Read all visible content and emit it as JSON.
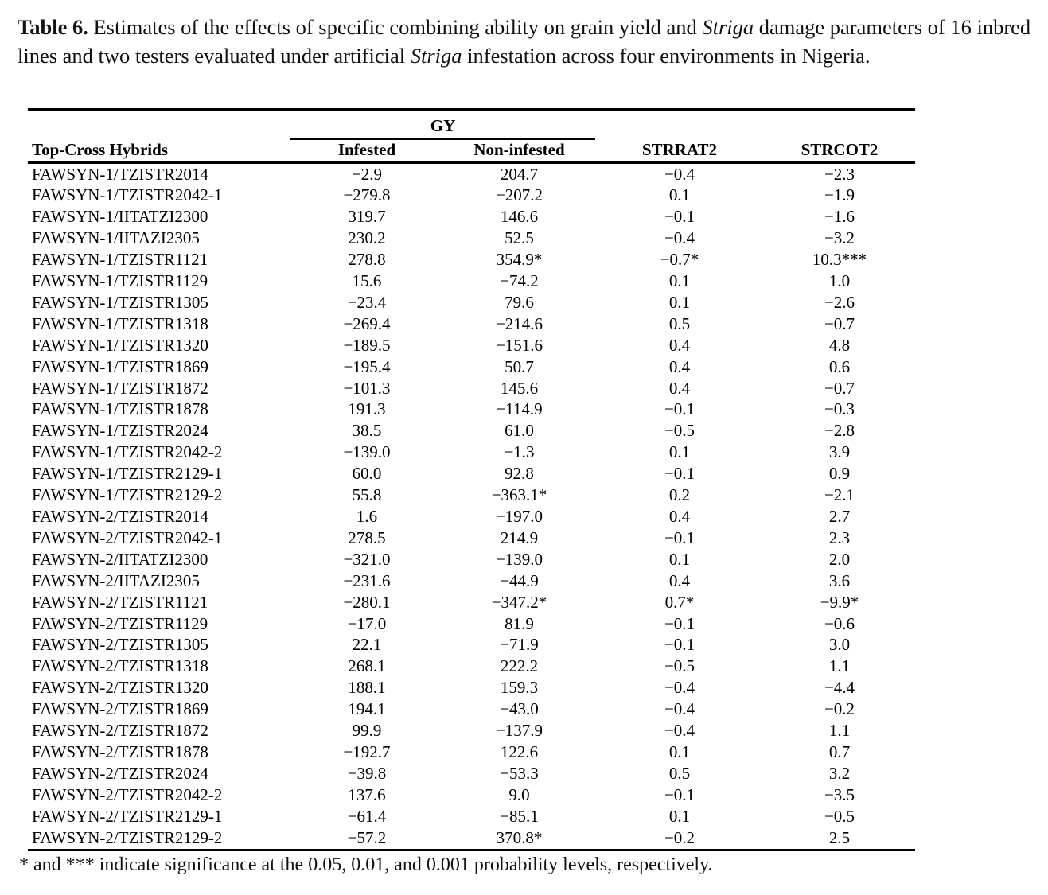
{
  "caption": {
    "label": "Table 6.",
    "part1": " Estimates of the effects of specific combining ability on grain yield and ",
    "striga1": "Striga",
    "part2": " damage parameters of 16 inbred lines and two testers evaluated under artificial ",
    "striga2": "Striga",
    "part3": " infestation across four environments in Nigeria."
  },
  "table": {
    "group_header": "GY",
    "columns": [
      "Top-Cross Hybrids",
      "Infested",
      "Non-infested",
      "STRRAT2",
      "STRCOT2"
    ],
    "rows": [
      [
        "FAWSYN-1/TZISTR2014",
        "−2.9",
        "204.7",
        "−0.4",
        "−2.3"
      ],
      [
        "FAWSYN-1/TZISTR2042-1",
        "−279.8",
        "−207.2",
        "0.1",
        "−1.9"
      ],
      [
        "FAWSYN-1/IITATZI2300",
        "319.7",
        "146.6",
        "−0.1",
        "−1.6"
      ],
      [
        "FAWSYN-1/IITAZI2305",
        "230.2",
        "52.5",
        "−0.4",
        "−3.2"
      ],
      [
        "FAWSYN-1/TZISTR1121",
        "278.8",
        "354.9*",
        "−0.7*",
        "10.3***"
      ],
      [
        "FAWSYN-1/TZISTR1129",
        "15.6",
        "−74.2",
        "0.1",
        "1.0"
      ],
      [
        "FAWSYN-1/TZISTR1305",
        "−23.4",
        "79.6",
        "0.1",
        "−2.6"
      ],
      [
        "FAWSYN-1/TZISTR1318",
        "−269.4",
        "−214.6",
        "0.5",
        "−0.7"
      ],
      [
        "FAWSYN-1/TZISTR1320",
        "−189.5",
        "−151.6",
        "0.4",
        "4.8"
      ],
      [
        "FAWSYN-1/TZISTR1869",
        "−195.4",
        "50.7",
        "0.4",
        "0.6"
      ],
      [
        "FAWSYN-1/TZISTR1872",
        "−101.3",
        "145.6",
        "0.4",
        "−0.7"
      ],
      [
        "FAWSYN-1/TZISTR1878",
        "191.3",
        "−114.9",
        "−0.1",
        "−0.3"
      ],
      [
        "FAWSYN-1/TZISTR2024",
        "38.5",
        "61.0",
        "−0.5",
        "−2.8"
      ],
      [
        "FAWSYN-1/TZISTR2042-2",
        "−139.0",
        "−1.3",
        "0.1",
        "3.9"
      ],
      [
        "FAWSYN-1/TZISTR2129-1",
        "60.0",
        "92.8",
        "−0.1",
        "0.9"
      ],
      [
        "FAWSYN-1/TZISTR2129-2",
        "55.8",
        "−363.1*",
        "0.2",
        "−2.1"
      ],
      [
        "FAWSYN-2/TZISTR2014",
        "1.6",
        "−197.0",
        "0.4",
        "2.7"
      ],
      [
        "FAWSYN-2/TZISTR2042-1",
        "278.5",
        "214.9",
        "−0.1",
        "2.3"
      ],
      [
        "FAWSYN-2/IITATZI2300",
        "−321.0",
        "−139.0",
        "0.1",
        "2.0"
      ],
      [
        "FAWSYN-2/IITAZI2305",
        "−231.6",
        "−44.9",
        "0.4",
        "3.6"
      ],
      [
        "FAWSYN-2/TZISTR1121",
        "−280.1",
        "−347.2*",
        "0.7*",
        "−9.9*"
      ],
      [
        "FAWSYN-2/TZISTR1129",
        "−17.0",
        "81.9",
        "−0.1",
        "−0.6"
      ],
      [
        "FAWSYN-2/TZISTR1305",
        "22.1",
        "−71.9",
        "−0.1",
        "3.0"
      ],
      [
        "FAWSYN-2/TZISTR1318",
        "268.1",
        "222.2",
        "−0.5",
        "1.1"
      ],
      [
        "FAWSYN-2/TZISTR1320",
        "188.1",
        "159.3",
        "−0.4",
        "−4.4"
      ],
      [
        "FAWSYN-2/TZISTR1869",
        "194.1",
        "−43.0",
        "−0.4",
        "−0.2"
      ],
      [
        "FAWSYN-2/TZISTR1872",
        "99.9",
        "−137.9",
        "−0.4",
        "1.1"
      ],
      [
        "FAWSYN-2/TZISTR1878",
        "−192.7",
        "122.6",
        "0.1",
        "0.7"
      ],
      [
        "FAWSYN-2/TZISTR2024",
        "−39.8",
        "−53.3",
        "0.5",
        "3.2"
      ],
      [
        "FAWSYN-2/TZISTR2042-2",
        "137.6",
        "9.0",
        "−0.1",
        "−3.5"
      ],
      [
        "FAWSYN-2/TZISTR2129-1",
        "−61.4",
        "−85.1",
        "0.1",
        "−0.5"
      ],
      [
        "FAWSYN-2/TZISTR2129-2",
        "−57.2",
        "370.8*",
        "−0.2",
        "2.5"
      ]
    ]
  },
  "footnote": "* and *** indicate significance at the 0.05, 0.01, and 0.001 probability levels, respectively."
}
